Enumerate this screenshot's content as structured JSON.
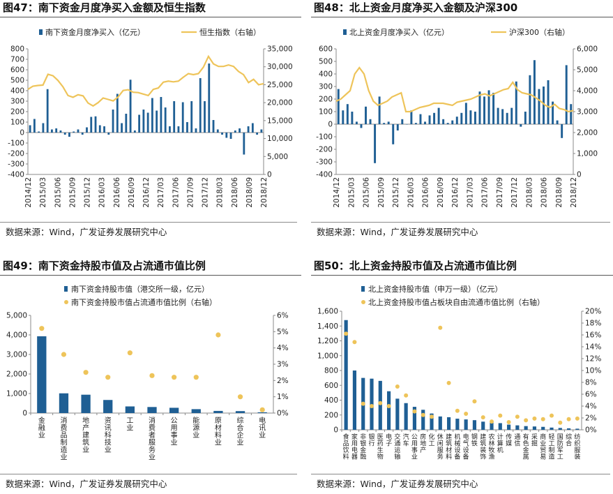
{
  "panels": [
    {
      "title": "图47：南下资金月度净买入金额及恒生指数",
      "source": "数据来源：Wind，广发证券发展研究中心",
      "legend": [
        "南下资金月度净买入（亿元）",
        "恒生指数（右轴）"
      ]
    },
    {
      "title": "图48：北上资金月度净买入金额及沪深300",
      "source": "数据来源：Wind，广发证券发展研究中心",
      "legend": [
        "北上资金月度净买入（亿元）",
        "沪深300（右轴）"
      ]
    },
    {
      "title": "图49：南下资金持股市值及占流通市值比例",
      "source": "数据来源：Wind，广发证券发展研究中心",
      "legend": [
        "南下资金持股市值（港交所一级，亿元）",
        "南下资金持股市值占流通市值比例（右轴）"
      ]
    },
    {
      "title": "图50：北上资金持股市值及占流通市值比例",
      "source": "数据来源：Wind，广发证券发展研究中心",
      "legend": [
        "北上资金持股市值（申万一级）（亿元）",
        "北上资金持股市值占板块自由流通市值比例（右轴）"
      ]
    }
  ],
  "colors": {
    "bar": "#1f5f94",
    "line": "#eec45a",
    "dot": "#eec45a",
    "grid": "#888888"
  },
  "chart_data": [
    {
      "type": "bar",
      "combo": "bar+line",
      "x_tick_labels": [
        "2014/12",
        "2015/03",
        "2015/06",
        "2015/09",
        "2015/12",
        "2016/03",
        "2016/06",
        "2016/09",
        "2016/12",
        "2017/03",
        "2017/06",
        "2017/09",
        "2017/12",
        "2018/03",
        "2018/06",
        "2018/09",
        "2018/12"
      ],
      "y_ticks": [
        -400,
        -300,
        -200,
        -100,
        0,
        100,
        200,
        300,
        400,
        500,
        600,
        700,
        800
      ],
      "y2_ticks": [
        0,
        5000,
        10000,
        15000,
        20000,
        25000,
        30000,
        35000
      ],
      "ylim": [
        -400,
        800
      ],
      "y2lim": [
        0,
        35000
      ],
      "y2_tick_labels": [
        "0",
        "5,000",
        "10,000",
        "15,000",
        "20,000",
        "25,000",
        "30,000",
        "35,000"
      ],
      "series": [
        {
          "name": "南下资金月度净买入（亿元）",
          "type": "bar",
          "values": [
            70,
            130,
            10,
            90,
            415,
            30,
            40,
            20,
            -20,
            -40,
            10,
            30,
            -20,
            50,
            150,
            155,
            70,
            60,
            -20,
            220,
            370,
            90,
            180,
            505,
            20,
            170,
            220,
            190,
            330,
            210,
            340,
            240,
            60,
            300,
            60,
            290,
            100,
            300,
            40,
            520,
            300,
            660,
            120,
            30,
            -20,
            -50,
            -60,
            20,
            40,
            -210,
            60,
            90,
            -20,
            30
          ],
          "axis": "left"
        },
        {
          "name": "恒生指数（右轴）",
          "type": "line",
          "values": [
            23700,
            24600,
            24800,
            24900,
            27900,
            27500,
            26200,
            24400,
            22000,
            21500,
            22200,
            21900,
            19900,
            19100,
            20000,
            21300,
            20900,
            20500,
            21600,
            23400,
            23600,
            22900,
            22800,
            22400,
            22000,
            23700,
            24100,
            25700,
            26000,
            25800,
            26000,
            27100,
            28100,
            27800,
            28100,
            29900,
            32900,
            30800,
            30100,
            30100,
            30500,
            30100,
            28700,
            27800,
            25600,
            26500,
            25000,
            25300
          ],
          "axis": "right"
        }
      ]
    },
    {
      "type": "bar",
      "combo": "bar+line",
      "x_tick_labels": [
        "2014/12",
        "2015/03",
        "2015/06",
        "2015/09",
        "2015/12",
        "2016/03",
        "2016/06",
        "2016/09",
        "2016/12",
        "2017/03",
        "2017/06",
        "2017/09",
        "2017/12",
        "2018/03",
        "2018/06",
        "2018/09",
        "2018/12"
      ],
      "y_ticks": [
        -400,
        -300,
        -200,
        -100,
        0,
        100,
        200,
        300,
        400,
        500,
        600
      ],
      "y2_ticks": [
        0,
        1000,
        2000,
        3000,
        4000,
        5000,
        6000
      ],
      "ylim": [
        -400,
        600
      ],
      "y2lim": [
        0,
        6000
      ],
      "y2_tick_labels": [
        "0",
        "1,000",
        "2,000",
        "3,000",
        "4,000",
        "5,000",
        "6,000"
      ],
      "series": [
        {
          "name": "北上资金月度净买入（亿元）",
          "type": "bar",
          "values": [
            280,
            110,
            160,
            100,
            20,
            -30,
            140,
            40,
            -310,
            220,
            10,
            20,
            -160,
            -50,
            40,
            0,
            110,
            10,
            80,
            20,
            70,
            90,
            130,
            40,
            10,
            30,
            60,
            90,
            170,
            110,
            100,
            260,
            220,
            270,
            250,
            130,
            120,
            90,
            130,
            340,
            -20,
            100,
            390,
            510,
            280,
            300,
            350,
            180,
            30,
            -110,
            470,
            160
          ],
          "axis": "left"
        },
        {
          "name": "沪深300（右轴）",
          "type": "line",
          "values": [
            3500,
            3600,
            3800,
            4000,
            4800,
            5100,
            4800,
            4000,
            3500,
            3300,
            3400,
            3500,
            3700,
            3800,
            3900,
            3000,
            3000,
            3100,
            3200,
            3250,
            3300,
            3400,
            3400,
            3400,
            3350,
            3300,
            3450,
            3500,
            3550,
            3600,
            3700,
            3800,
            3850,
            3750,
            3850,
            3950,
            4050,
            4100,
            4400,
            4050,
            3900,
            3850,
            3800,
            3650,
            3500,
            3300,
            3200,
            3350,
            3150,
            3100,
            3000,
            3050
          ],
          "axis": "right"
        }
      ]
    },
    {
      "type": "bar",
      "combo": "bar+scatter",
      "categories": [
        "金融业",
        "消费品制造业",
        "地产建筑业",
        "资讯科技业",
        "工业",
        "消费者服务业",
        "公用事业",
        "能源业",
        "原材料业",
        "综合企业",
        "电讯业"
      ],
      "y_ticks": [
        0,
        1000,
        2000,
        3000,
        4000,
        5000
      ],
      "y_tick_labels": [
        "0",
        "1,000",
        "2,000",
        "3,000",
        "4,000",
        "5,000"
      ],
      "y2_tick_labels": [
        "0%",
        "1%",
        "2%",
        "3%",
        "4%",
        "5%",
        "6%"
      ],
      "ylim": [
        0,
        5000
      ],
      "y2lim": [
        0,
        6
      ],
      "series": [
        {
          "name": "南下资金持股市值（港交所一级，亿元）",
          "type": "bar",
          "values": [
            3930,
            1010,
            940,
            670,
            340,
            310,
            270,
            200,
            110,
            100,
            40
          ],
          "axis": "left"
        },
        {
          "name": "南下资金持股市值占流通市值比例（右轴）",
          "type": "scatter",
          "values": [
            5.2,
            3.6,
            2.5,
            2.2,
            3.7,
            2.3,
            2.2,
            2.2,
            4.8,
            1.0,
            0.2
          ],
          "axis": "right",
          "unit": "%"
        }
      ]
    },
    {
      "type": "bar",
      "combo": "bar+scatter",
      "categories": [
        "食品饮料",
        "家用电器",
        "非银金融",
        "银行",
        "医药生物",
        "电子",
        "交通运输",
        "汽车",
        "公用事业",
        "房地产",
        "化工",
        "休闲服务",
        "建筑材料",
        "机械设备",
        "电气设备",
        "钢铁",
        "建筑装饰",
        "农林牧渔",
        "计算机",
        "传媒",
        "通信",
        "有色金属",
        "采掘",
        "商业贸易",
        "轻工制造",
        "国防军工",
        "综合",
        "纺织服装"
      ],
      "y_ticks": [
        0,
        200,
        400,
        600,
        800,
        1000,
        1200,
        1400,
        1600
      ],
      "y_tick_labels": [
        "0",
        "200",
        "400",
        "600",
        "800",
        "1,000",
        "1,200",
        "1,400",
        "1,600"
      ],
      "y2_tick_labels": [
        "0%",
        "2%",
        "4%",
        "6%",
        "8%",
        "10%",
        "12%",
        "14%",
        "16%",
        "18%",
        "20%"
      ],
      "ylim": [
        0,
        1600
      ],
      "y2lim": [
        0,
        20
      ],
      "series": [
        {
          "name": "北上资金持股市值（申万一级）（亿元）",
          "type": "bar",
          "values": [
            1480,
            800,
            700,
            690,
            660,
            520,
            420,
            360,
            310,
            270,
            220,
            180,
            170,
            150,
            140,
            130,
            110,
            100,
            90,
            70,
            60,
            50,
            45,
            40,
            30,
            25,
            20,
            15
          ],
          "axis": "left"
        },
        {
          "name": "北上资金持股市值占板块自由流通市值比例（右轴）",
          "type": "scatter",
          "values": [
            16.2,
            14.8,
            4.4,
            4.0,
            4.5,
            4.0,
            7.3,
            5.8,
            3.1,
            2.5,
            2.2,
            17.2,
            7.9,
            3.2,
            2.7,
            4.8,
            2.1,
            1.4,
            2.4,
            1.3,
            2.2,
            1.6,
            1.9,
            1.8,
            2.4,
            1.2,
            1.8,
            1.9
          ],
          "axis": "right",
          "unit": "%"
        }
      ]
    }
  ]
}
